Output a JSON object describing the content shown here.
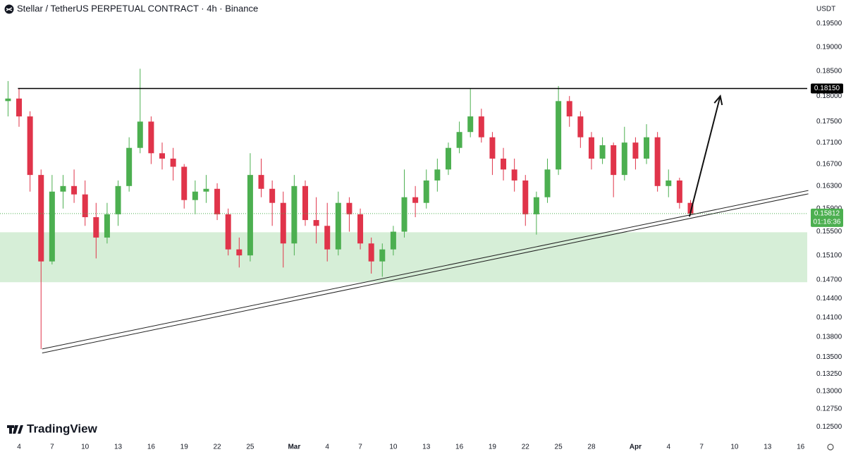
{
  "chart_data": {
    "type": "candlestick",
    "title": "Stellar / TetherUS PERPETUAL CONTRACT · 4h · Binance",
    "currency": "USDT",
    "brand": "TradingView",
    "log_scale": true,
    "grid": false,
    "up_color": "#4caf50",
    "down_color": "#e0344a",
    "ylim": [
      0.1231,
      0.2001
    ],
    "xlim": [
      -1.73,
      71.6
    ],
    "yticks": [
      {
        "value": 0.195,
        "label": "0.19500"
      },
      {
        "value": 0.19,
        "label": "0.19000"
      },
      {
        "value": 0.185,
        "label": "0.18500"
      },
      {
        "value": 0.18,
        "label": "0.18000"
      },
      {
        "value": 0.175,
        "label": "0.17500"
      },
      {
        "value": 0.171,
        "label": "0.17100"
      },
      {
        "value": 0.167,
        "label": "0.16700"
      },
      {
        "value": 0.163,
        "label": "0.16300"
      },
      {
        "value": 0.159,
        "label": "0.15900"
      },
      {
        "value": 0.155,
        "label": "0.15500"
      },
      {
        "value": 0.151,
        "label": "0.15100"
      },
      {
        "value": 0.147,
        "label": "0.14700"
      },
      {
        "value": 0.144,
        "label": "0.14400"
      },
      {
        "value": 0.141,
        "label": "0.14100"
      },
      {
        "value": 0.138,
        "label": "0.13800"
      },
      {
        "value": 0.135,
        "label": "0.13500"
      },
      {
        "value": 0.1325,
        "label": "0.13250"
      },
      {
        "value": 0.13,
        "label": "0.13000"
      },
      {
        "value": 0.1275,
        "label": "0.12750"
      },
      {
        "value": 0.125,
        "label": "0.12500"
      }
    ],
    "xticks": [
      {
        "value": 0,
        "label": "4"
      },
      {
        "value": 3,
        "label": "7"
      },
      {
        "value": 6,
        "label": "10"
      },
      {
        "value": 9,
        "label": "13"
      },
      {
        "value": 12,
        "label": "16"
      },
      {
        "value": 15,
        "label": "19"
      },
      {
        "value": 18,
        "label": "22"
      },
      {
        "value": 21,
        "label": "25"
      },
      {
        "value": 25,
        "label": "Mar"
      },
      {
        "value": 28,
        "label": "4"
      },
      {
        "value": 31,
        "label": "7"
      },
      {
        "value": 34,
        "label": "10"
      },
      {
        "value": 37,
        "label": "13"
      },
      {
        "value": 40,
        "label": "16"
      },
      {
        "value": 43,
        "label": "19"
      },
      {
        "value": 46,
        "label": "22"
      },
      {
        "value": 49,
        "label": "25"
      },
      {
        "value": 52,
        "label": "28"
      },
      {
        "value": 56,
        "label": "Apr"
      },
      {
        "value": 59,
        "label": "4"
      },
      {
        "value": 62,
        "label": "7"
      },
      {
        "value": 65,
        "label": "10"
      },
      {
        "value": 68,
        "label": "13"
      },
      {
        "value": 71,
        "label": "16"
      }
    ],
    "x": [
      -1,
      0,
      1,
      2,
      3,
      4,
      5,
      6,
      7,
      8,
      9,
      10,
      11,
      12,
      13,
      14,
      15,
      16,
      17,
      18,
      19,
      20,
      21,
      22,
      23,
      24,
      25,
      26,
      27,
      28,
      29,
      30,
      31,
      32,
      33,
      34,
      35,
      36,
      37,
      38,
      39,
      40,
      41,
      42,
      43,
      44,
      45,
      46,
      47,
      48,
      49,
      50,
      51,
      52,
      53,
      54,
      55,
      56,
      57,
      58,
      59,
      60,
      61
    ],
    "open": [
      0.179,
      0.1795,
      0.176,
      0.165,
      0.15,
      0.162,
      0.163,
      0.1615,
      0.1575,
      0.154,
      0.158,
      0.163,
      0.17,
      0.175,
      0.169,
      0.168,
      0.1665,
      0.1605,
      0.162,
      0.1625,
      0.158,
      0.152,
      0.151,
      0.165,
      0.1625,
      0.16,
      0.153,
      0.163,
      0.157,
      0.156,
      0.152,
      0.16,
      0.158,
      0.153,
      0.15,
      0.152,
      0.155,
      0.161,
      0.16,
      0.164,
      0.166,
      0.17,
      0.173,
      0.176,
      0.172,
      0.168,
      0.166,
      0.164,
      0.158,
      0.161,
      0.166,
      0.179,
      0.176,
      0.172,
      0.168,
      0.1705,
      0.165,
      0.171,
      0.168,
      0.172,
      0.163,
      0.164,
      0.16
    ],
    "high": [
      0.183,
      0.1815,
      0.177,
      0.166,
      0.165,
      0.165,
      0.166,
      0.164,
      0.16,
      0.16,
      0.164,
      0.172,
      0.1855,
      0.176,
      0.171,
      0.17,
      0.167,
      0.164,
      0.165,
      0.1635,
      0.159,
      0.154,
      0.169,
      0.168,
      0.164,
      0.162,
      0.165,
      0.164,
      0.161,
      0.16,
      0.162,
      0.161,
      0.159,
      0.154,
      0.153,
      0.156,
      0.166,
      0.163,
      0.166,
      0.168,
      0.171,
      0.175,
      0.1815,
      0.1775,
      0.173,
      0.17,
      0.168,
      0.165,
      0.162,
      0.168,
      0.182,
      0.18,
      0.177,
      0.173,
      0.172,
      0.171,
      0.174,
      0.172,
      0.1745,
      0.173,
      0.166,
      0.1645,
      0.1605
    ],
    "low": [
      0.176,
      0.174,
      0.162,
      0.1362,
      0.1495,
      0.159,
      0.16,
      0.156,
      0.1505,
      0.153,
      0.156,
      0.162,
      0.169,
      0.167,
      0.166,
      0.164,
      0.159,
      0.158,
      0.16,
      0.157,
      0.151,
      0.149,
      0.15,
      0.161,
      0.156,
      0.149,
      0.151,
      0.156,
      0.153,
      0.15,
      0.151,
      0.155,
      0.152,
      0.148,
      0.1475,
      0.151,
      0.154,
      0.1575,
      0.159,
      0.162,
      0.165,
      0.169,
      0.172,
      0.171,
      0.165,
      0.164,
      0.162,
      0.156,
      0.1545,
      0.16,
      0.165,
      0.174,
      0.17,
      0.166,
      0.167,
      0.161,
      0.164,
      0.166,
      0.167,
      0.162,
      0.161,
      0.159,
      0.1578
    ],
    "close": [
      0.1795,
      0.176,
      0.165,
      0.15,
      0.162,
      0.163,
      0.1615,
      0.1575,
      0.154,
      0.158,
      0.163,
      0.17,
      0.175,
      0.169,
      0.168,
      0.1665,
      0.1605,
      0.162,
      0.1625,
      0.158,
      0.152,
      0.151,
      0.165,
      0.1625,
      0.16,
      0.153,
      0.163,
      0.157,
      0.156,
      0.152,
      0.16,
      0.158,
      0.153,
      0.15,
      0.152,
      0.155,
      0.161,
      0.16,
      0.164,
      0.166,
      0.17,
      0.173,
      0.176,
      0.172,
      0.168,
      0.166,
      0.164,
      0.158,
      0.161,
      0.166,
      0.179,
      0.176,
      0.172,
      0.168,
      0.1705,
      0.165,
      0.171,
      0.168,
      0.172,
      0.163,
      0.164,
      0.16,
      0.1581
    ],
    "resistance": {
      "value": 0.1815,
      "label": "0.18150",
      "from_x": -0.1
    },
    "last_price": {
      "value": 0.15812,
      "label": "0.15812",
      "countdown": "01:16:36"
    },
    "zone": {
      "low": 0.1466,
      "high": 0.1549,
      "color": "#d6eed7"
    },
    "trendlines": [
      {
        "x": [
          2.1,
          71.7
        ],
        "y": [
          0.1362,
          0.1622
        ]
      },
      {
        "x": [
          2.1,
          71.7
        ],
        "y": [
          0.1356,
          0.1616
        ]
      }
    ],
    "arrow": {
      "x": [
        60.9,
        63.7
      ],
      "y": [
        0.1576,
        0.18
      ]
    }
  }
}
